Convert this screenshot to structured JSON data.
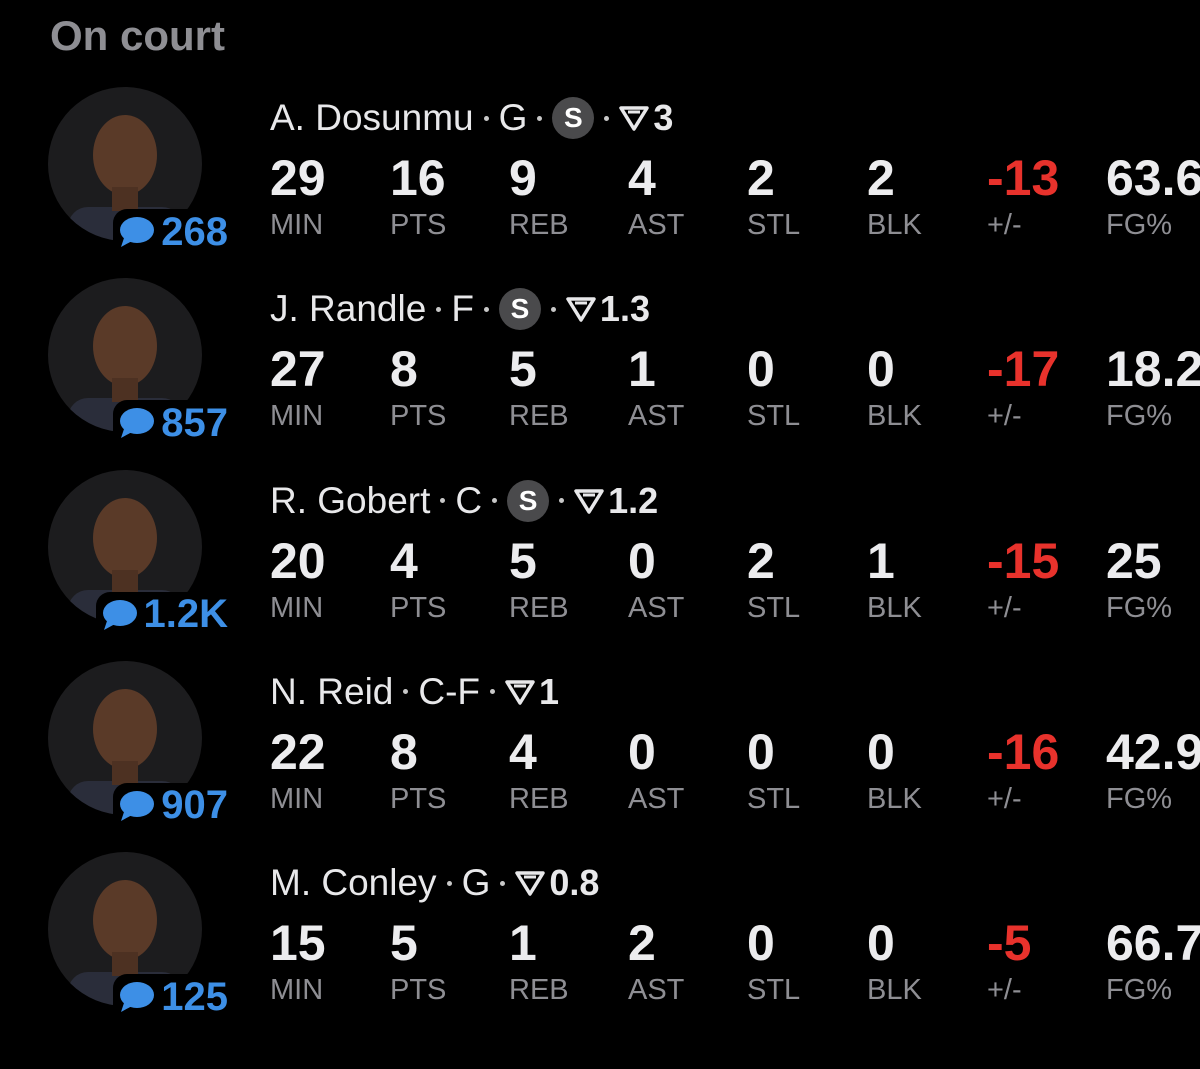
{
  "header": {
    "title": "On court"
  },
  "columns": [
    "MIN",
    "PTS",
    "REB",
    "AST",
    "STL",
    "BLK",
    "+/-",
    "FG%"
  ],
  "players": [
    {
      "name": "A. Dosunmu",
      "position": "G",
      "badge": "S",
      "rating": 3,
      "comments": 268,
      "stats": [
        29,
        16,
        9,
        4,
        2,
        2,
        -13,
        63.6
      ]
    },
    {
      "name": "J. Randle",
      "position": "F",
      "badge": "S",
      "rating": 1.3,
      "comments": 857,
      "stats": [
        27,
        8,
        5,
        1,
        0,
        0,
        -17,
        18.2
      ]
    },
    {
      "name": "R. Gobert",
      "position": "C",
      "badge": "S",
      "rating": 1.2,
      "comments": "1.2K",
      "stats": [
        20,
        4,
        5,
        0,
        2,
        1,
        -15,
        25
      ]
    },
    {
      "name": "N. Reid",
      "position": "C-F",
      "rating": 1,
      "comments": 907,
      "stats": [
        22,
        8,
        4,
        0,
        0,
        0,
        -16,
        42.9
      ]
    },
    {
      "name": "M. Conley",
      "position": "G",
      "rating": 0.8,
      "comments": 125,
      "stats": [
        15,
        5,
        1,
        2,
        0,
        0,
        -5,
        66.7
      ]
    }
  ]
}
